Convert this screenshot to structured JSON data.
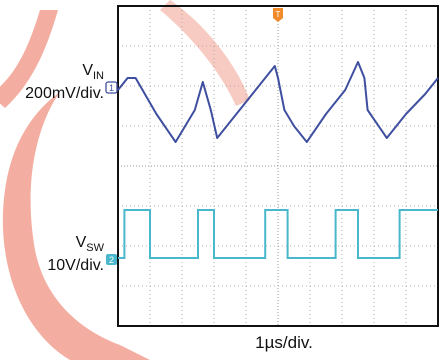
{
  "colors": {
    "background": "#ffffff",
    "grid": "#9a9a9a",
    "frame": "#111111",
    "vin_trace": "#3f4f9f",
    "vsw_trace": "#4ab8cc",
    "trigger_marker": "#f08a2a",
    "watermark": "#f2a090"
  },
  "icons": {
    "trigger": "trigger-marker-icon",
    "ch1": "channel-1-marker-icon",
    "ch2": "channel-2-marker-icon"
  },
  "labels": {
    "vin_main": "V",
    "vin_sub": "IN",
    "vin_scale": "200mV/div.",
    "vsw_main": "V",
    "vsw_sub": "SW",
    "vsw_scale": "10V/div.",
    "time_scale": "1µs/div.",
    "ch1_marker": "1",
    "ch2_marker": "2",
    "trigger_marker": "T"
  },
  "chart_data": {
    "type": "line",
    "title": "",
    "grid": true,
    "xlabel": "1µs/div.",
    "ylabel": "",
    "divisions": {
      "x": 10,
      "y": 8
    },
    "xlim": [
      0,
      10
    ],
    "ylim": [
      -4,
      4
    ],
    "series": [
      {
        "name": "V_IN",
        "label": "VIN",
        "scale": "200mV/div.",
        "color": "#3f4f9f",
        "x": [
          0,
          0.3,
          0.55,
          1.2,
          1.8,
          2.4,
          2.65,
          2.9,
          3.1,
          3.7,
          4.3,
          4.9,
          5.0,
          5.2,
          5.5,
          5.9,
          6.5,
          7.1,
          7.5,
          7.7,
          7.8,
          8.4,
          9.0,
          9.6,
          10
        ],
        "values": [
          1.9,
          2.2,
          2.2,
          1.3,
          0.6,
          1.4,
          2.1,
          1.4,
          0.7,
          1.3,
          1.9,
          2.5,
          2.2,
          1.4,
          1.0,
          0.6,
          1.3,
          1.9,
          2.6,
          2.2,
          1.4,
          0.7,
          1.3,
          1.8,
          2.2
        ]
      },
      {
        "name": "V_SW",
        "label": "VSW",
        "scale": "10V/div.",
        "color": "#4ab8cc",
        "x": [
          0,
          0.2,
          0.2,
          1.0,
          1.0,
          2.5,
          2.5,
          3.0,
          3.0,
          4.6,
          4.6,
          5.3,
          5.3,
          6.8,
          6.8,
          7.5,
          7.5,
          8.8,
          8.8,
          10
        ],
        "values": [
          -2.3,
          -2.3,
          -1.1,
          -1.1,
          -2.3,
          -2.3,
          -1.1,
          -1.1,
          -2.3,
          -2.3,
          -1.1,
          -1.1,
          -2.3,
          -2.3,
          -1.1,
          -1.1,
          -2.3,
          -2.3,
          -1.1,
          -1.1
        ]
      }
    ]
  }
}
